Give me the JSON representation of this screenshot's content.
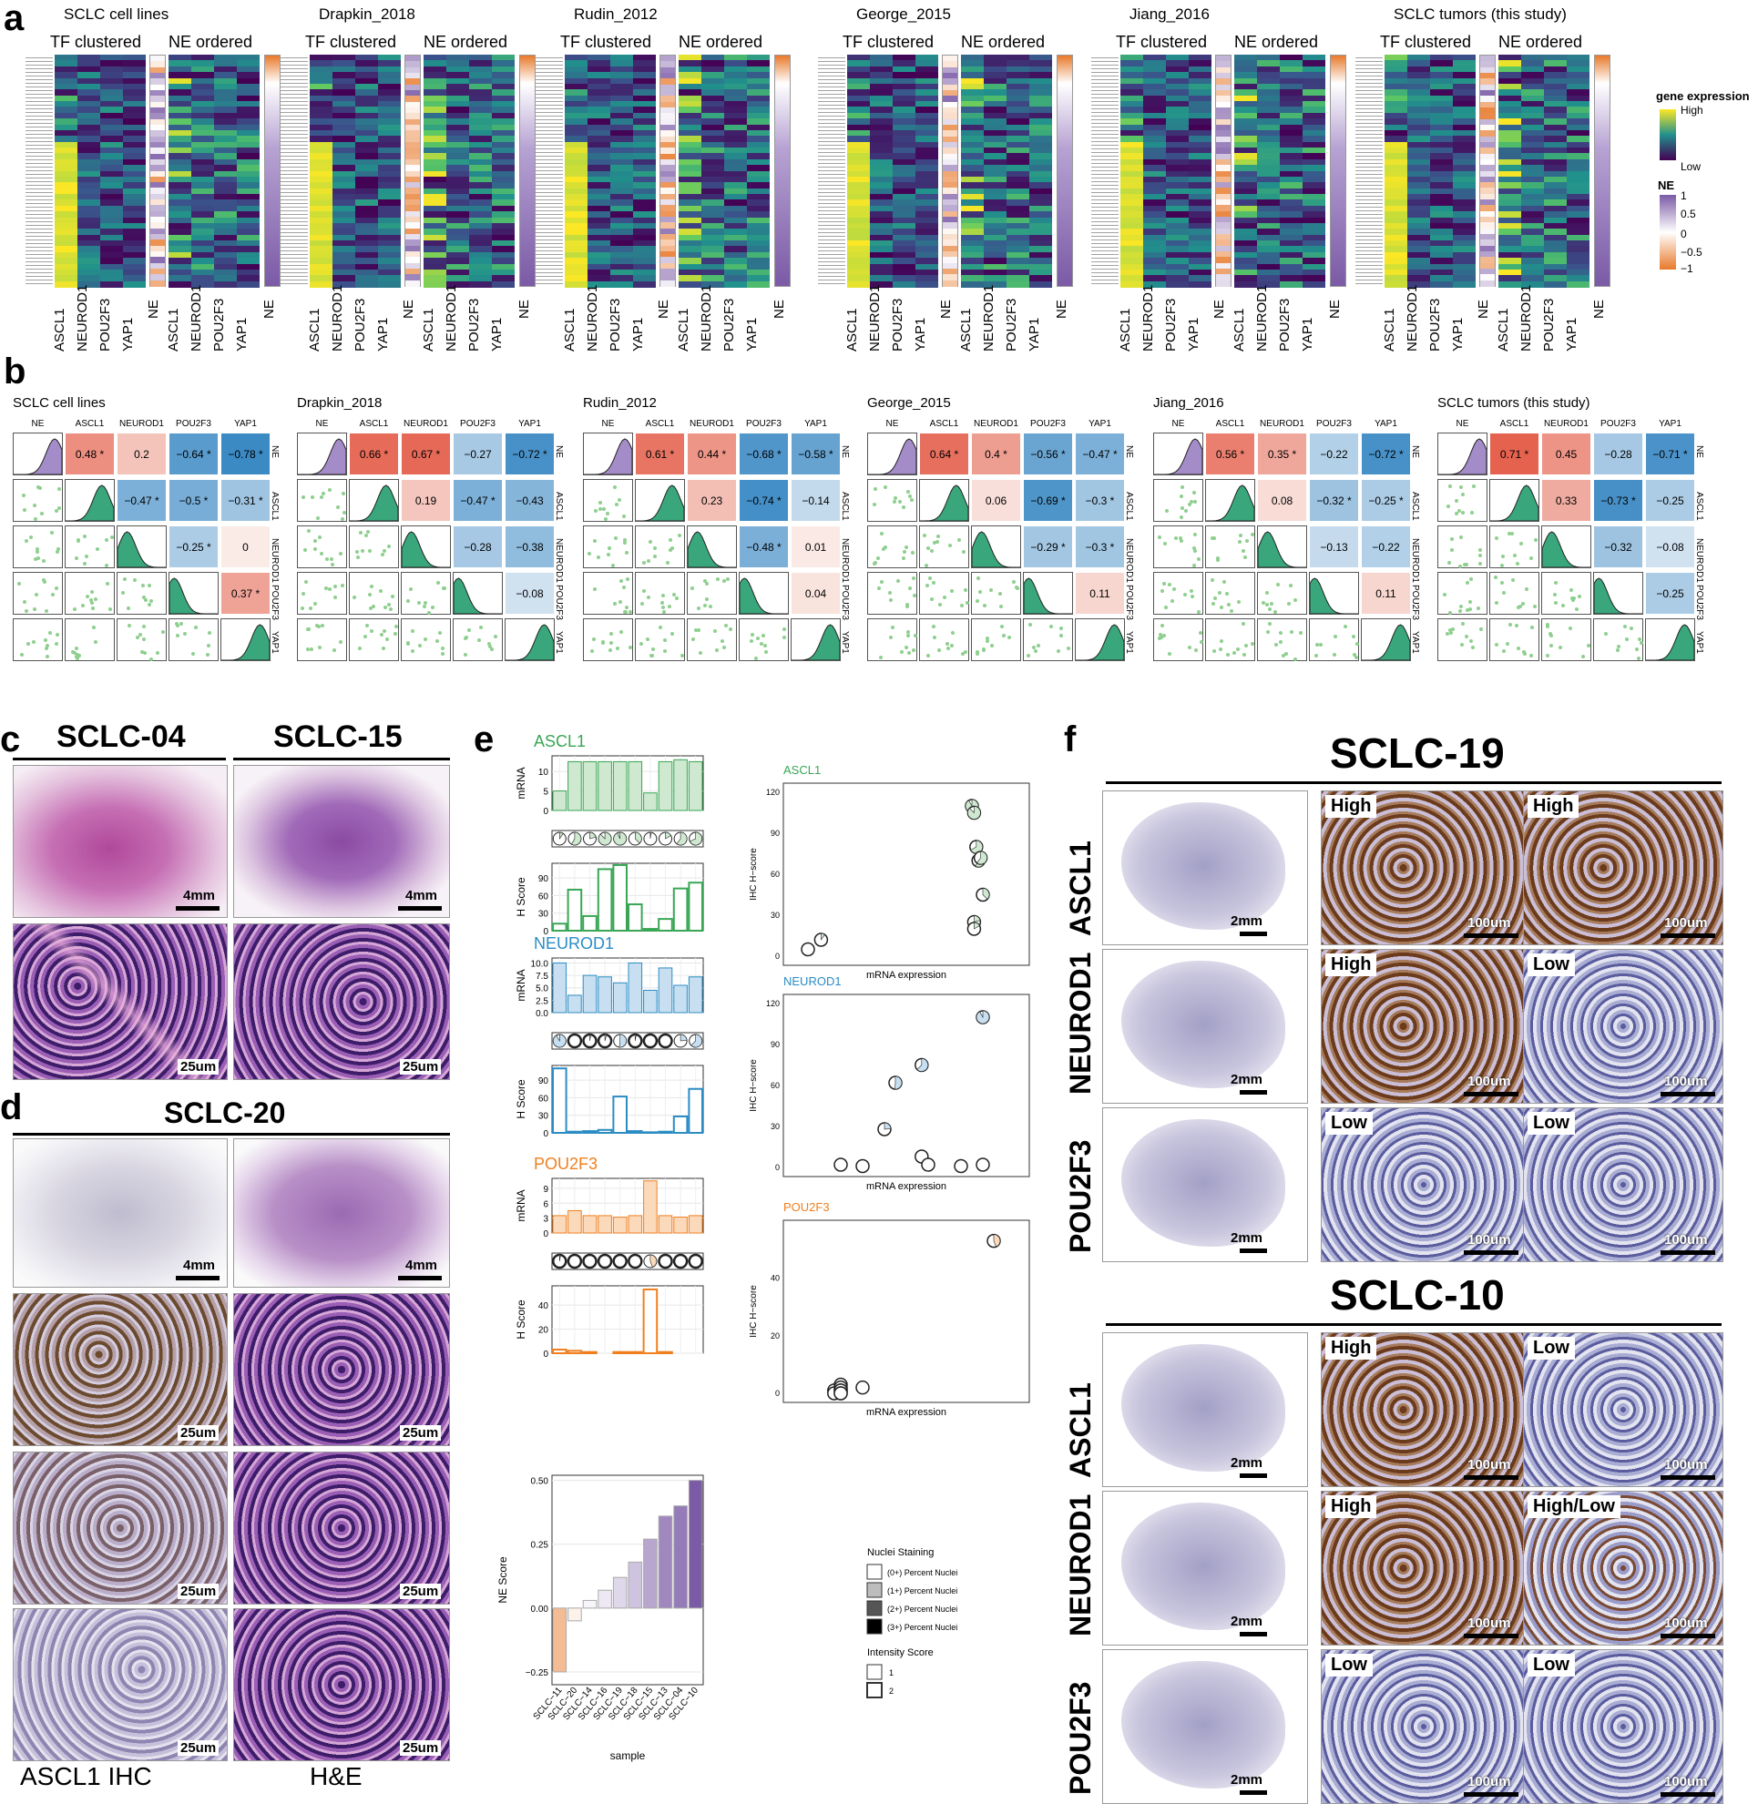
{
  "panel_labels": {
    "a": "a",
    "b": "b",
    "c": "c",
    "d": "d",
    "e": "e",
    "f": "f"
  },
  "datasets": [
    "SCLC cell lines",
    "Drapkin_2018",
    "Rudin_2012",
    "George_2015",
    "Jiang_2016",
    "SCLC tumors (this study)"
  ],
  "panel_a": {
    "tf_clustered": "TF clustered",
    "ne_ordered": "NE ordered",
    "genes": [
      "ASCL1",
      "NEUROD1",
      "POU2F3",
      "YAP1"
    ],
    "ne_col": "NE",
    "legend": {
      "gene_title": "gene expression",
      "high": "High",
      "low": "Low",
      "ne_title": "NE",
      "ne_ticks": [
        "1",
        "0.5",
        "0",
        "−0.5",
        "−1"
      ]
    },
    "colors": {
      "viridis_low": "#440154",
      "viridis_mid": "#21918c",
      "viridis_high": "#fde725",
      "ne_pos": "#7b5aa6",
      "ne_neg": "#e8792b"
    }
  },
  "panel_b": {
    "headers": [
      "NE",
      "ASCL1",
      "NEUROD1",
      "POU2F3",
      "YAP1"
    ],
    "corr": [
      {
        "NE": [
          "0.48 *",
          "0.2",
          "−0.64 *",
          "−0.78 *"
        ],
        "ASCL1": [
          "−0.47 *",
          "−0.5 *",
          "−0.31 *"
        ],
        "NEUROD1": [
          "−0.25 *",
          "0"
        ],
        "POU2F3": [
          "0.37 *"
        ]
      },
      {
        "NE": [
          "0.66 *",
          "0.67 *",
          "−0.27",
          "−0.72 *"
        ],
        "ASCL1": [
          "0.19",
          "−0.47 *",
          "−0.43"
        ],
        "NEUROD1": [
          "−0.28",
          "−0.38"
        ],
        "POU2F3": [
          "−0.08"
        ]
      },
      {
        "NE": [
          "0.61 *",
          "0.44 *",
          "−0.68 *",
          "−0.58 *"
        ],
        "ASCL1": [
          "0.23",
          "−0.74 *",
          "−0.14"
        ],
        "NEUROD1": [
          "−0.48 *",
          "0.01"
        ],
        "POU2F3": [
          "0.04"
        ]
      },
      {
        "NE": [
          "0.64 *",
          "0.4 *",
          "−0.56 *",
          "−0.47 *"
        ],
        "ASCL1": [
          "0.06",
          "−0.69 *",
          "−0.3 *"
        ],
        "NEUROD1": [
          "−0.29 *",
          "−0.3 *"
        ],
        "POU2F3": [
          "0.11"
        ]
      },
      {
        "NE": [
          "0.56 *",
          "0.35 *",
          "−0.22",
          "−0.72 *"
        ],
        "ASCL1": [
          "0.08",
          "−0.32 *",
          "−0.25 *"
        ],
        "NEUROD1": [
          "−0.13",
          "−0.22"
        ],
        "POU2F3": [
          "0.11"
        ]
      },
      {
        "NE": [
          "0.71 *",
          "0.45",
          "−0.28",
          "−0.71 *"
        ],
        "ASCL1": [
          "0.33",
          "−0.73 *",
          "−0.25"
        ],
        "NEUROD1": [
          "−0.32",
          "−0.08"
        ],
        "POU2F3": [
          "−0.25"
        ]
      }
    ]
  },
  "panel_c": {
    "samples": [
      "SCLC-04",
      "SCLC-15"
    ],
    "scale_top": "4mm",
    "scale_bottom": "25um"
  },
  "panel_d": {
    "sample": "SCLC-20",
    "scale_top": "4mm",
    "scale_bottom": "25um",
    "col_labels": [
      "ASCL1 IHC",
      "H&E"
    ]
  },
  "panel_e": {
    "genes": [
      {
        "name": "ASCL1",
        "color": "#3aa655",
        "fill": "#cfe8d0"
      },
      {
        "name": "NEUROD1",
        "color": "#2b8cc4",
        "fill": "#c7dff0"
      },
      {
        "name": "POU2F3",
        "color": "#f07f1e",
        "fill": "#fbd9bb"
      }
    ],
    "samples": [
      "SCLC−11",
      "SCLC−20",
      "SCLC−14",
      "SCLC−16",
      "SCLC−19",
      "SCLC−18",
      "SCLC−15",
      "SCLC−13",
      "SCLC−04",
      "SCLC−10"
    ],
    "mrna_label": "mRNA",
    "hscore_label": "H Score",
    "ne_label": "NE Score",
    "sample_axis": "sample",
    "scatter_x": "mRNA expression",
    "scatter_y": "IHC H−score",
    "ascl1_mrna": [
      5,
      12.5,
      12.5,
      12.5,
      12.5,
      12.5,
      4.5,
      12.5,
      13,
      12.5
    ],
    "ascl1_h": [
      12,
      70,
      25,
      105,
      112,
      45,
      3,
      20,
      72,
      82
    ],
    "neurod1_mrna": [
      10,
      3.5,
      7.5,
      7.2,
      6,
      10,
      4.5,
      9,
      5.5,
      7.2
    ],
    "neurod1_h": [
      110,
      2,
      3,
      5,
      62,
      3,
      1,
      2,
      28,
      75
    ],
    "pou2f3_mrna": [
      3.5,
      4.5,
      3.5,
      3.5,
      3.2,
      3.5,
      10.5,
      3.5,
      3.2,
      3.5
    ],
    "pou2f3_h": [
      3,
      2,
      1,
      0,
      1,
      1,
      53,
      1,
      0,
      0
    ],
    "ne_score": [
      -0.25,
      -0.05,
      0.03,
      0.07,
      0.12,
      0.18,
      0.27,
      0.36,
      0.4,
      0.5
    ],
    "ascl1_mrna_ticks": [
      "0",
      "5",
      "10"
    ],
    "ascl1_h_ticks": [
      "0",
      "30",
      "60",
      "90"
    ],
    "neurod1_mrna_ticks": [
      "0.0",
      "2.5",
      "5.0",
      "7.5",
      "10.0"
    ],
    "neurod1_h_ticks": [
      "0",
      "30",
      "60",
      "90"
    ],
    "pou2f3_mrna_ticks": [
      "0",
      "3",
      "6",
      "9"
    ],
    "pou2f3_h_ticks": [
      "0",
      "20",
      "40"
    ],
    "ne_ticks": [
      "−0.25",
      "0.00",
      "0.25",
      "0.50"
    ],
    "scatter_ascl1_yticks": [
      "0",
      "30",
      "60",
      "90",
      "120"
    ],
    "scatter_neurod1_yticks": [
      "0",
      "30",
      "60",
      "90",
      "120"
    ],
    "scatter_pou2f3_yticks": [
      "0",
      "20",
      "40"
    ],
    "scatter_ascl1": [
      [
        2,
        5
      ],
      [
        2.6,
        12
      ],
      [
        9.5,
        110
      ],
      [
        9.6,
        105
      ],
      [
        9.7,
        80
      ],
      [
        9.8,
        70
      ],
      [
        9.9,
        72
      ],
      [
        10,
        45
      ],
      [
        9.6,
        25
      ],
      [
        9.6,
        20
      ]
    ],
    "scatter_neurod1": [
      [
        3.5,
        2
      ],
      [
        4.5,
        1
      ],
      [
        5.5,
        28
      ],
      [
        6,
        62
      ],
      [
        7.2,
        75
      ],
      [
        7.2,
        8
      ],
      [
        7.5,
        2
      ],
      [
        9,
        1
      ],
      [
        10,
        2
      ],
      [
        10,
        110
      ]
    ],
    "scatter_pou2f3": [
      [
        3.2,
        1
      ],
      [
        3.2,
        0
      ],
      [
        3.5,
        3
      ],
      [
        3.5,
        2
      ],
      [
        3.5,
        1
      ],
      [
        3.5,
        1
      ],
      [
        3.5,
        0
      ],
      [
        3.5,
        0
      ],
      [
        4.5,
        2
      ],
      [
        10.5,
        53
      ]
    ],
    "legend_nuclei_title": "Nuclei Staining",
    "legend_nuclei": [
      "(0+) Percent Nuclei",
      "(1+) Percent Nuclei",
      "(2+) Percent Nuclei",
      "(3+) Percent Nuclei"
    ],
    "legend_intensity_title": "Intensity Score",
    "legend_intensity": [
      "1",
      "2"
    ]
  },
  "panel_f": {
    "blocks": [
      {
        "sample": "SCLC-19",
        "rows": [
          {
            "gene": "ASCL1",
            "tags": [
              "High",
              "High"
            ]
          },
          {
            "gene": "NEUROD1",
            "tags": [
              "High",
              "Low"
            ]
          },
          {
            "gene": "POU2F3",
            "tags": [
              "Low",
              "Low"
            ]
          }
        ]
      },
      {
        "sample": "SCLC-10",
        "rows": [
          {
            "gene": "ASCL1",
            "tags": [
              "High",
              "Low"
            ]
          },
          {
            "gene": "NEUROD1",
            "tags": [
              "High",
              "High/Low"
            ]
          },
          {
            "gene": "POU2F3",
            "tags": [
              "Low",
              "Low"
            ]
          }
        ]
      }
    ],
    "scale_whole": "2mm",
    "scale_zoom": "100um"
  }
}
